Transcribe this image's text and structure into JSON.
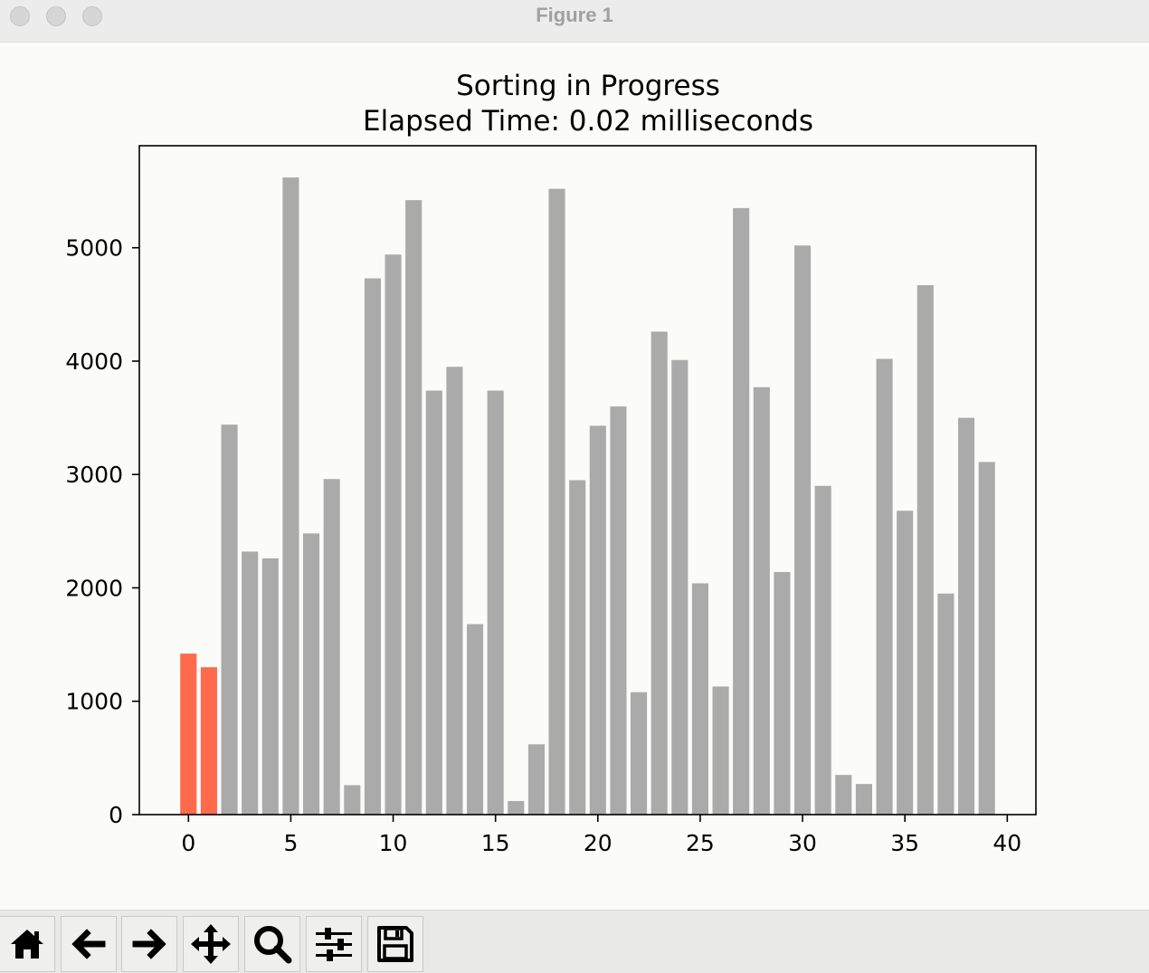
{
  "window": {
    "title": "Figure 1"
  },
  "toolbar": {
    "buttons": [
      {
        "icon": "home-icon"
      },
      {
        "icon": "back-arrow-icon"
      },
      {
        "icon": "forward-arrow-icon"
      },
      {
        "icon": "pan-icon"
      },
      {
        "icon": "zoom-icon"
      },
      {
        "icon": "configure-subplots-icon"
      },
      {
        "icon": "save-icon"
      }
    ]
  },
  "colors": {
    "bar_default": "#aaaaaa",
    "bar_highlight": "#ff6a4c"
  },
  "chart_data": {
    "type": "bar",
    "title": "Sorting in Progress",
    "subtitle": "Elapsed Time: 0.02 milliseconds",
    "xlabel": "",
    "ylabel": "",
    "x": [
      0,
      1,
      2,
      3,
      4,
      5,
      6,
      7,
      8,
      9,
      10,
      11,
      12,
      13,
      14,
      15,
      16,
      17,
      18,
      19,
      20,
      21,
      22,
      23,
      24,
      25,
      26,
      27,
      28,
      29,
      30,
      31,
      32,
      33,
      34,
      35,
      36,
      37,
      38,
      39
    ],
    "values": [
      1420,
      1300,
      3440,
      2320,
      2260,
      5620,
      2480,
      2960,
      260,
      4730,
      4940,
      5420,
      3740,
      3950,
      1680,
      3740,
      120,
      620,
      5520,
      2950,
      3430,
      3600,
      1080,
      4260,
      4010,
      2040,
      1130,
      5350,
      3770,
      2140,
      5020,
      2900,
      350,
      270,
      4020,
      2680,
      4670,
      1950,
      3500,
      3110
    ],
    "highlight_indices": [
      0,
      1
    ],
    "xlim": [
      -2.4,
      41.4
    ],
    "ylim": [
      0,
      5900
    ],
    "xticks": [
      0,
      5,
      10,
      15,
      20,
      25,
      30,
      35,
      40
    ],
    "yticks": [
      0,
      1000,
      2000,
      3000,
      4000,
      5000
    ],
    "grid": false,
    "legend": "none"
  }
}
